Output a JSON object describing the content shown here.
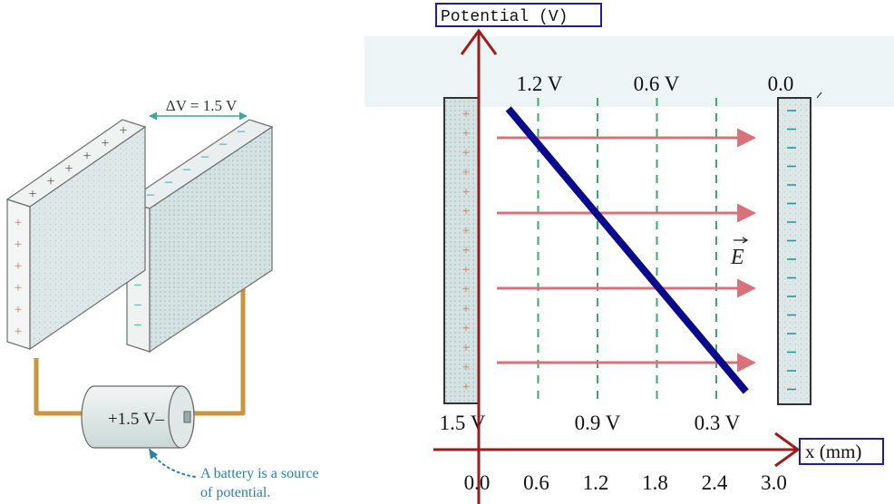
{
  "left_figure": {
    "delta_v_label": "ΔV = 1.5 V",
    "plate_positive_sign": "+",
    "plate_negative_sign": "–",
    "battery_label": "+1.5 V–",
    "caption_line1": "A battery is a source",
    "caption_line2": "of potential."
  },
  "right_figure": {
    "y_axis_title": "Potential (V)",
    "x_axis_title": "x (mm)",
    "field_label": "E",
    "top_labels": [
      "1.2 V",
      "0.6 V",
      "0.0"
    ],
    "bottom_labels": [
      "1.5 V",
      "0.9 V",
      "0.3 V"
    ],
    "x_ticks": [
      "0.0",
      "0.6",
      "1.2",
      "1.8",
      "2.4",
      "3.0"
    ]
  },
  "chart_data": {
    "type": "line",
    "title": "",
    "xlabel": "x (mm)",
    "ylabel": "Potential (V)",
    "xlim": [
      0.0,
      3.0
    ],
    "ylim": [
      0.0,
      1.5
    ],
    "series": [
      {
        "name": "Potential",
        "x": [
          0.0,
          3.0
        ],
        "y": [
          1.5,
          0.0
        ]
      }
    ],
    "equipotentials_mm": [
      0.6,
      1.2,
      1.8,
      2.4
    ],
    "equipotential_values_V": [
      "1.2 V",
      "0.9 V",
      "0.6 V",
      "0.3 V"
    ]
  },
  "colors": {
    "axis": "#9e1b1b",
    "potential_line": "#0a0a8c",
    "field_arrow": "#d9707a",
    "equipotential": "#3aaa6a",
    "label_box": "#1f1f9c",
    "plus_sign": "#c97a5a",
    "minus_sign": "#1f9a9a",
    "wire": "#c8963c",
    "caption": "#2a7fb0"
  }
}
